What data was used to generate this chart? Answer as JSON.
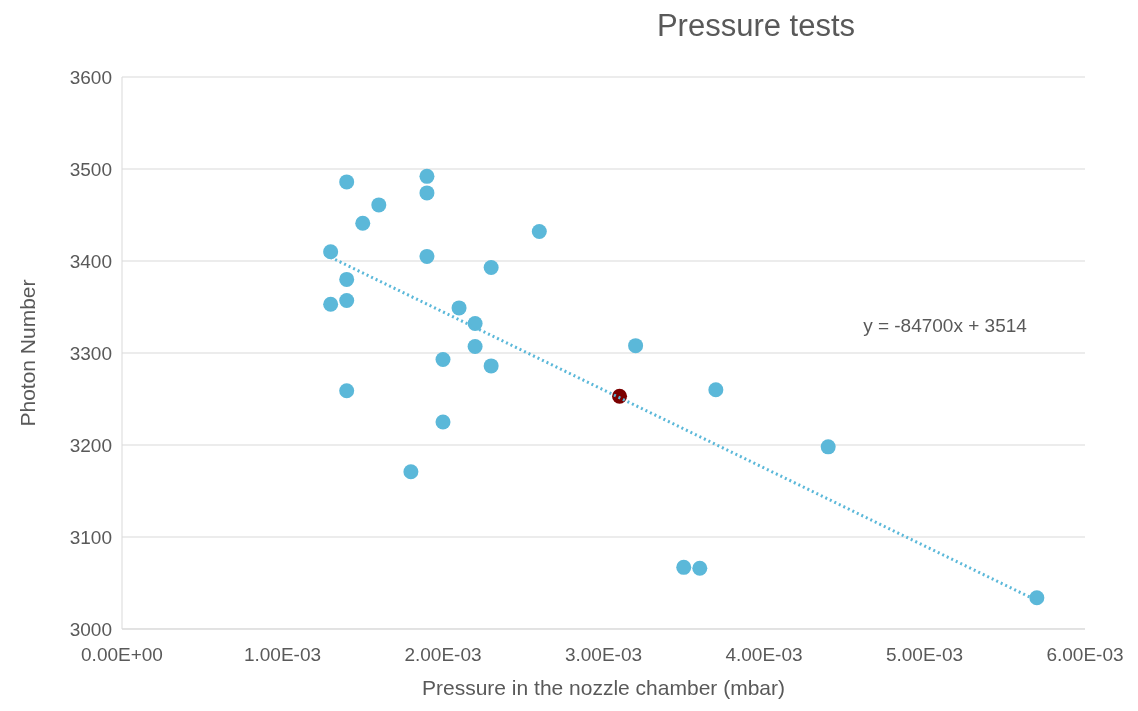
{
  "chart_data": {
    "type": "scatter",
    "title": "Pressure tests",
    "xlabel": "Pressure in the nozzle chamber (mbar)",
    "ylabel": "Photon Number",
    "annotations": [
      "y = -84700x + 3514"
    ],
    "xlim": [
      0,
      0.006
    ],
    "xticks": [
      {
        "value": 0,
        "label": "0.00E+00"
      },
      {
        "value": 0.001,
        "label": "1.00E-03"
      },
      {
        "value": 0.002,
        "label": "2.00E-03"
      },
      {
        "value": 0.003,
        "label": "3.00E-03"
      },
      {
        "value": 0.004,
        "label": "4.00E-03"
      },
      {
        "value": 0.005,
        "label": "5.00E-03"
      },
      {
        "value": 0.006,
        "label": "6.00E-03"
      }
    ],
    "ylim": [
      3000,
      3600
    ],
    "yticks": [
      3000,
      3100,
      3200,
      3300,
      3400,
      3500,
      3600
    ],
    "grid": "y",
    "marker": "circle",
    "series": [
      {
        "color": "#5bb8d9",
        "x": [
          0.0013,
          0.0014,
          0.0016,
          0.0015,
          0.0019,
          0.0019,
          0.0019,
          0.0026,
          0.0023,
          0.0014,
          0.0013,
          0.0014,
          0.0021,
          0.0022,
          0.0022,
          0.0023,
          0.002,
          0.0014,
          0.002,
          0.0018,
          0.0032,
          0.0037,
          0.0044,
          0.0035,
          0.0036,
          0.0057
        ],
        "values": [
          3410,
          3486,
          3461,
          3441,
          3492,
          3474,
          3405,
          3432,
          3393,
          3380,
          3353,
          3357,
          3349,
          3332,
          3307,
          3286,
          3293,
          3259,
          3225,
          3171,
          3308,
          3260,
          3198,
          3067,
          3066,
          3034
        ]
      },
      {
        "color": "#7b0000",
        "x": [
          0.0031
        ],
        "values": [
          3253
        ]
      },
      {
        "type": "line",
        "color": "#5bb8d9",
        "line_style": "dotted",
        "marker": "none",
        "x": [
          0.0013,
          0.0057
        ],
        "values": [
          3404,
          3031
        ]
      }
    ]
  }
}
